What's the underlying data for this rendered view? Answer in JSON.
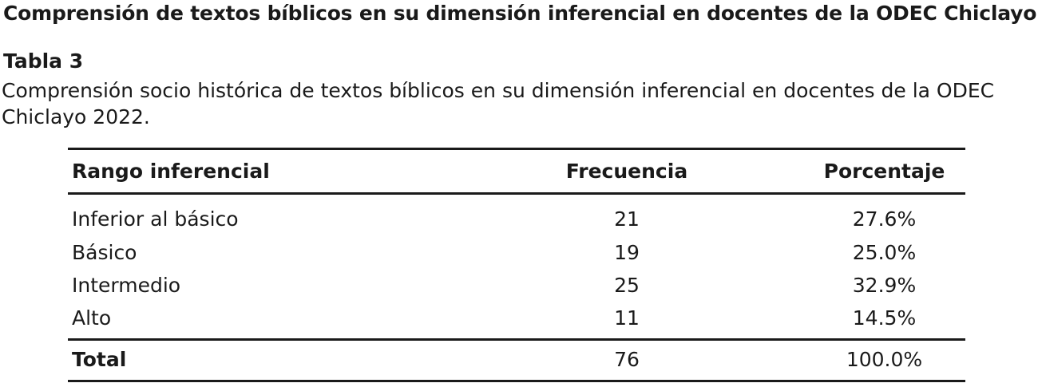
{
  "document": {
    "heading": "Comprensión de textos bíblicos en su dimensión inferencial en docentes de la ODEC Chiclayo",
    "table_label": "Tabla 3",
    "caption": "Comprensión socio histórica de textos bíblicos en su dimensión inferencial en docentes de la ODEC Chiclayo 2022."
  },
  "table": {
    "headers": [
      "Rango inferencial",
      "Frecuencia",
      "Porcentaje"
    ],
    "rows": [
      {
        "label": "Inferior al básico",
        "frequency": "21",
        "percentage": "27.6%"
      },
      {
        "label": "Básico",
        "frequency": "19",
        "percentage": "25.0%"
      },
      {
        "label": "Intermedio",
        "frequency": "25",
        "percentage": "32.9%"
      },
      {
        "label": "Alto",
        "frequency": "11",
        "percentage": "14.5%"
      }
    ],
    "total": {
      "label": "Total",
      "frequency": "76",
      "percentage": "100.0%"
    }
  }
}
